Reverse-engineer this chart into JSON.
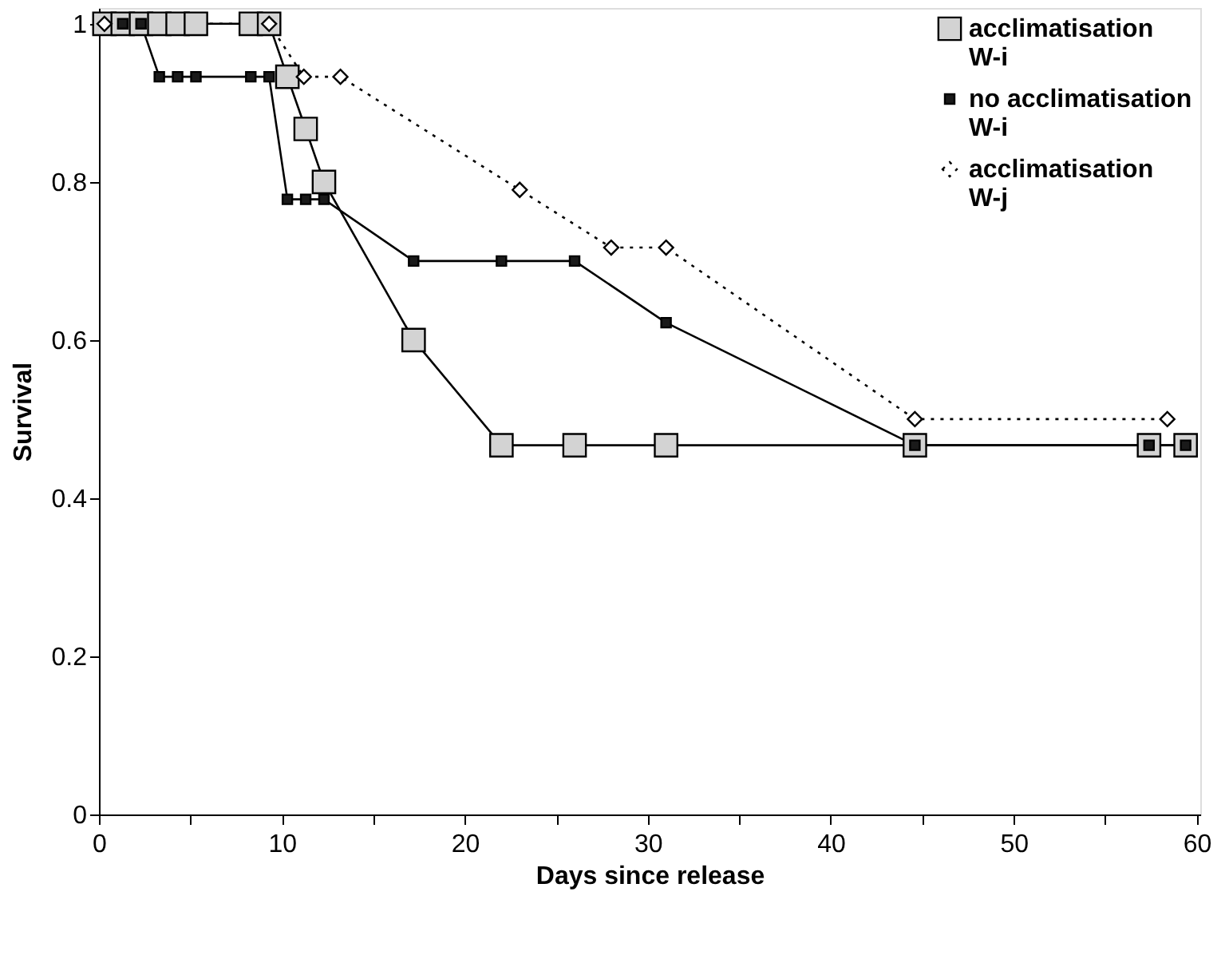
{
  "chart_data": {
    "type": "line",
    "xlabel": "Days since release",
    "ylabel": "Survival",
    "xlim": [
      0,
      60.2
    ],
    "xticks": [
      0,
      {
        "value": 5,
        "label": null
      },
      10,
      {
        "value": 15,
        "label": null
      },
      20,
      {
        "value": 25,
        "label": null
      },
      30,
      {
        "value": 35,
        "label": null
      },
      40,
      {
        "value": 45,
        "label": null
      },
      50,
      {
        "value": 55,
        "label": null
      },
      60
    ],
    "ylim": [
      0,
      1.02
    ],
    "yticks": [
      {
        "value": 0,
        "label": "0"
      },
      0.2,
      0.4,
      0.6,
      0.8,
      {
        "value": 1,
        "label": "1"
      }
    ],
    "grid": false,
    "legend": "top right",
    "series": [
      {
        "name": "acclimatisation W-i",
        "color": "#d3d3d3",
        "marker": "square",
        "line_style": "solid",
        "x": [
          0.3,
          1.3,
          2.3,
          3.3,
          4.3,
          5.3,
          8.3,
          9.3,
          10.3,
          11.3,
          12.3,
          17.2,
          22,
          26,
          31,
          44.6,
          57.4,
          59.4
        ],
        "values": [
          1,
          1,
          1,
          1,
          1,
          1,
          1,
          1,
          0.933,
          0.867,
          0.8,
          0.6,
          0.467,
          0.467,
          0.467,
          0.467,
          0.467,
          0.467
        ]
      },
      {
        "name": "no acclimatisation W-i",
        "color": "#1a1a1a",
        "marker": "square",
        "line_style": "solid",
        "x": [
          1.3,
          2.3,
          3.3,
          4.3,
          5.3,
          8.3,
          9.3,
          10.3,
          11.3,
          12.3,
          17.2,
          22,
          26,
          31,
          44.6,
          57.4,
          59.4
        ],
        "values": [
          1,
          1,
          0.933,
          0.933,
          0.933,
          0.933,
          0.933,
          0.778,
          0.778,
          0.778,
          0.7,
          0.7,
          0.7,
          0.622,
          0.467,
          0.467,
          0.467
        ]
      },
      {
        "name": "acclimatisation W-j",
        "color": "#ffffff",
        "marker": "diamond",
        "line_style": "dotted",
        "x": [
          0.3,
          9.3,
          11.2,
          13.2,
          23,
          28,
          31,
          44.6,
          58.4
        ],
        "values": [
          1,
          1,
          0.933,
          0.933,
          0.79,
          0.717,
          0.717,
          0.5,
          0.5
        ]
      }
    ]
  }
}
